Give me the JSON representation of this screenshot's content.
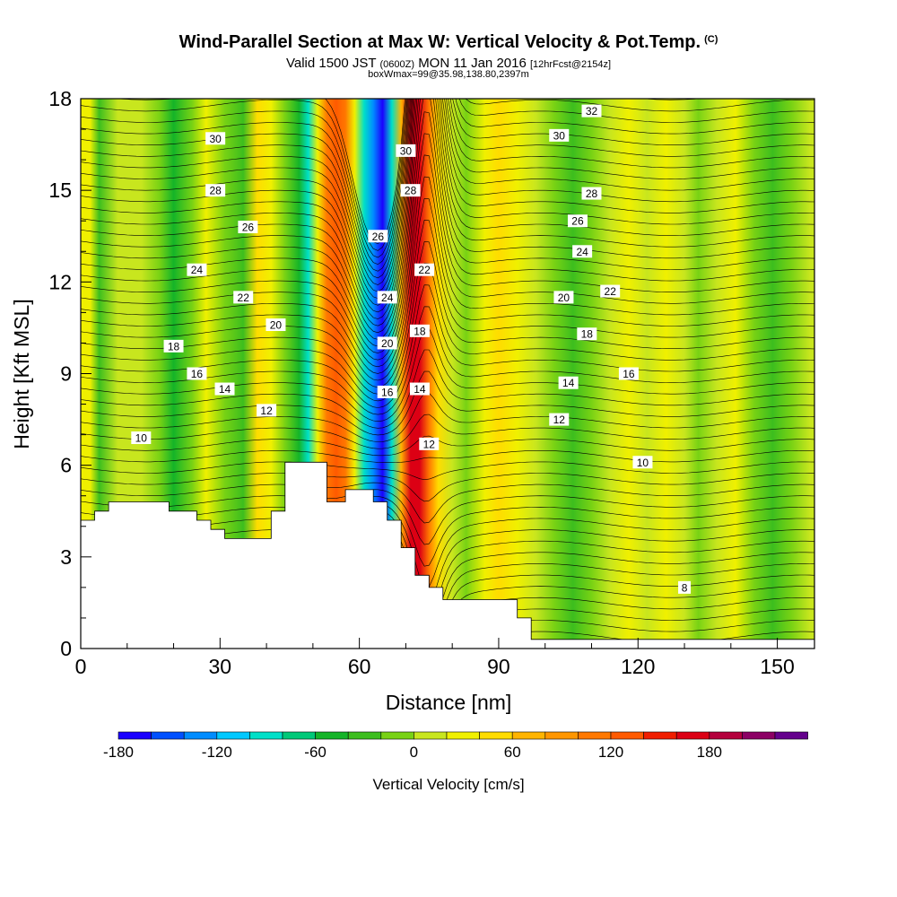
{
  "header": {
    "title": "Wind-Parallel Section at Max W: Vertical Velocity & Pot.Temp.",
    "title_mark": "(C)",
    "valid_prefix": "Valid 1500 JST",
    "valid_utc": "(0600Z)",
    "valid_date": "MON 11 Jan 2016",
    "forecast": "[12hrFcst@2154z]",
    "box_info": "boxWmax=99@35.98,138.80,2397m"
  },
  "chart_data": {
    "type": "heatmap",
    "xlabel": "Distance [nm]",
    "ylabel": "Height [Kft MSL]",
    "xlim": [
      0,
      158
    ],
    "ylim": [
      0,
      18
    ],
    "x_ticks": [
      0,
      30,
      60,
      90,
      120,
      150
    ],
    "y_ticks": [
      0,
      3,
      6,
      9,
      12,
      15,
      18
    ],
    "colorbar": {
      "label": "Vertical Velocity [cm/s]",
      "tick_labels": [
        -180,
        -120,
        -60,
        0,
        60,
        120,
        180
      ],
      "levels": [
        -180,
        -160,
        -140,
        -120,
        -100,
        -80,
        -60,
        -40,
        -20,
        0,
        20,
        40,
        60,
        80,
        100,
        120,
        140,
        160,
        180,
        200,
        220
      ],
      "colors": [
        "#1a00ff",
        "#0050ff",
        "#008cff",
        "#00c8ff",
        "#00e0c8",
        "#00c878",
        "#14b428",
        "#3cbe1e",
        "#78d214",
        "#c8e61e",
        "#f0f000",
        "#ffdc00",
        "#ffb400",
        "#ff9600",
        "#ff7800",
        "#ff5a00",
        "#f01e00",
        "#dc0014",
        "#b4003c",
        "#8c0064",
        "#64008c"
      ]
    },
    "vertical_velocity_columns": [
      {
        "x": 2,
        "w": 10
      },
      {
        "x": 4,
        "w": -50
      },
      {
        "x": 8,
        "w": -10
      },
      {
        "x": 13,
        "w": 0
      },
      {
        "x": 17,
        "w": -30
      },
      {
        "x": 20,
        "w": -55
      },
      {
        "x": 24,
        "w": -15
      },
      {
        "x": 27,
        "w": 20
      },
      {
        "x": 31,
        "w": -15
      },
      {
        "x": 35,
        "w": -40
      },
      {
        "x": 38,
        "w": 40
      },
      {
        "x": 41,
        "w": 25
      },
      {
        "x": 44,
        "w": -20
      },
      {
        "x": 47,
        "w": -60
      },
      {
        "x": 49,
        "w": -100
      },
      {
        "x": 51,
        "w": 20
      },
      {
        "x": 53,
        "w": 100
      },
      {
        "x": 55,
        "w": 110
      },
      {
        "x": 57,
        "w": 90
      },
      {
        "x": 59,
        "w": 20
      },
      {
        "x": 61,
        "w": -100
      },
      {
        "x": 63,
        "w": -150
      },
      {
        "x": 65,
        "w": -180
      },
      {
        "x": 67,
        "w": -110
      },
      {
        "x": 69,
        "w": 60
      },
      {
        "x": 71,
        "w": 160
      },
      {
        "x": 73,
        "w": 150
      },
      {
        "x": 75,
        "w": 100
      },
      {
        "x": 77,
        "w": 40
      },
      {
        "x": 80,
        "w": -10
      },
      {
        "x": 83,
        "w": -30
      },
      {
        "x": 87,
        "w": 20
      },
      {
        "x": 90,
        "w": 40
      },
      {
        "x": 94,
        "w": 10
      },
      {
        "x": 98,
        "w": -10
      },
      {
        "x": 102,
        "w": -25
      },
      {
        "x": 106,
        "w": -45
      },
      {
        "x": 110,
        "w": -20
      },
      {
        "x": 114,
        "w": 0
      },
      {
        "x": 118,
        "w": 10
      },
      {
        "x": 122,
        "w": -10
      },
      {
        "x": 126,
        "w": 25
      },
      {
        "x": 130,
        "w": 0
      },
      {
        "x": 133,
        "w": -25
      },
      {
        "x": 137,
        "w": -10
      },
      {
        "x": 141,
        "w": 15
      },
      {
        "x": 145,
        "w": -15
      },
      {
        "x": 149,
        "w": -35
      },
      {
        "x": 153,
        "w": -20
      },
      {
        "x": 157,
        "w": -10
      }
    ],
    "terrain": [
      [
        0,
        4.2
      ],
      [
        3,
        4.2
      ],
      [
        3,
        4.5
      ],
      [
        6,
        4.5
      ],
      [
        6,
        4.8
      ],
      [
        19,
        4.8
      ],
      [
        19,
        4.5
      ],
      [
        25,
        4.5
      ],
      [
        25,
        4.2
      ],
      [
        28,
        4.2
      ],
      [
        28,
        3.9
      ],
      [
        31,
        3.9
      ],
      [
        31,
        3.6
      ],
      [
        41,
        3.6
      ],
      [
        41,
        4.5
      ],
      [
        44,
        4.5
      ],
      [
        44,
        6.1
      ],
      [
        53,
        6.1
      ],
      [
        53,
        4.8
      ],
      [
        57,
        4.8
      ],
      [
        57,
        5.2
      ],
      [
        63,
        5.2
      ],
      [
        63,
        4.8
      ],
      [
        66,
        4.8
      ],
      [
        66,
        4.2
      ],
      [
        69,
        4.2
      ],
      [
        69,
        3.3
      ],
      [
        72,
        3.3
      ],
      [
        72,
        2.4
      ],
      [
        75,
        2.4
      ],
      [
        75,
        2.0
      ],
      [
        78,
        2.0
      ],
      [
        78,
        1.6
      ],
      [
        94,
        1.6
      ],
      [
        94,
        1.0
      ],
      [
        97,
        1.0
      ],
      [
        97,
        0.3
      ],
      [
        158,
        0.3
      ]
    ],
    "potential_temperature_labels": [
      {
        "text": "32",
        "x": 110,
        "y": 17.6
      },
      {
        "text": "30",
        "x": 29,
        "y": 16.7
      },
      {
        "text": "30",
        "x": 70,
        "y": 16.3
      },
      {
        "text": "30",
        "x": 103,
        "y": 16.8
      },
      {
        "text": "28",
        "x": 29,
        "y": 15.0
      },
      {
        "text": "28",
        "x": 71,
        "y": 15.0
      },
      {
        "text": "28",
        "x": 110,
        "y": 14.9
      },
      {
        "text": "26",
        "x": 36,
        "y": 13.8
      },
      {
        "text": "26",
        "x": 64,
        "y": 13.5
      },
      {
        "text": "26",
        "x": 107,
        "y": 14.0
      },
      {
        "text": "24",
        "x": 25,
        "y": 12.4
      },
      {
        "text": "24",
        "x": 66,
        "y": 11.5
      },
      {
        "text": "24",
        "x": 108,
        "y": 13.0
      },
      {
        "text": "22",
        "x": 35,
        "y": 11.5
      },
      {
        "text": "22",
        "x": 74,
        "y": 12.4
      },
      {
        "text": "22",
        "x": 114,
        "y": 11.7
      },
      {
        "text": "20",
        "x": 42,
        "y": 10.6
      },
      {
        "text": "20",
        "x": 66,
        "y": 10.0
      },
      {
        "text": "20",
        "x": 104,
        "y": 11.5
      },
      {
        "text": "18",
        "x": 20,
        "y": 9.9
      },
      {
        "text": "18",
        "x": 73,
        "y": 10.4
      },
      {
        "text": "18",
        "x": 109,
        "y": 10.3
      },
      {
        "text": "16",
        "x": 25,
        "y": 9.0
      },
      {
        "text": "16",
        "x": 66,
        "y": 8.4
      },
      {
        "text": "16",
        "x": 118,
        "y": 9.0
      },
      {
        "text": "14",
        "x": 31,
        "y": 8.5
      },
      {
        "text": "14",
        "x": 73,
        "y": 8.5
      },
      {
        "text": "14",
        "x": 105,
        "y": 8.7
      },
      {
        "text": "12",
        "x": 40,
        "y": 7.8
      },
      {
        "text": "12",
        "x": 75,
        "y": 6.7
      },
      {
        "text": "12",
        "x": 103,
        "y": 7.5
      },
      {
        "text": "10",
        "x": 13,
        "y": 6.9
      },
      {
        "text": "10",
        "x": 121,
        "y": 6.1
      },
      {
        "text": "8",
        "x": 130,
        "y": 2.0
      }
    ]
  }
}
